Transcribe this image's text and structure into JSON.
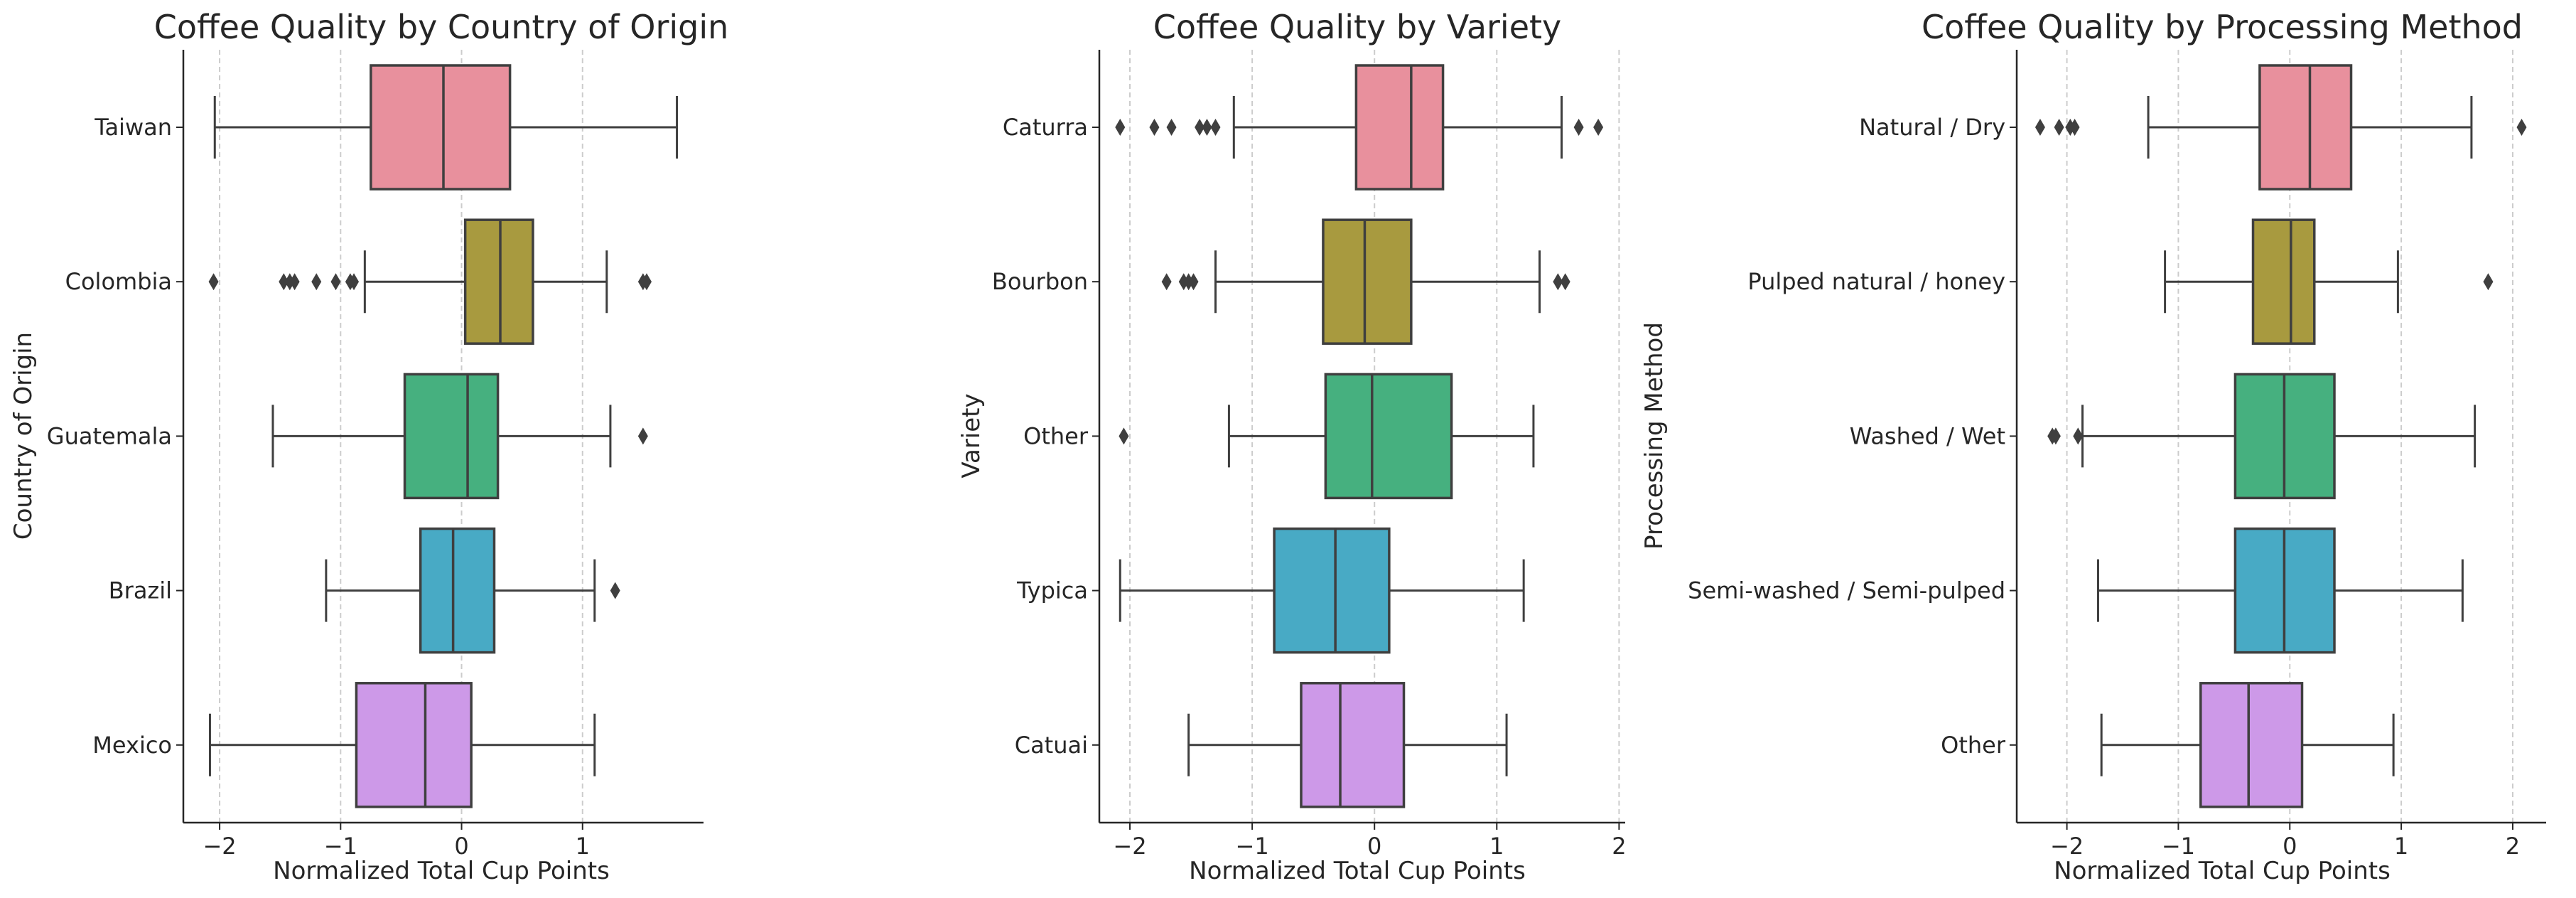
{
  "chart_data": [
    {
      "type": "box",
      "title": "Coffee Quality by Country of Origin",
      "xlabel": "Normalized Total Cup Points",
      "ylabel": "Country of Origin",
      "xlim": [
        -2.3,
        2.0
      ],
      "xticks": [
        -2,
        -1,
        0,
        1
      ],
      "xtick_labels": [
        "−2",
        "−1",
        "0",
        "1"
      ],
      "grid": "vertical-dashed",
      "categories": [
        "Taiwan",
        "Colombia",
        "Guatemala",
        "Brazil",
        "Mexico"
      ],
      "colors": [
        "#e8909d",
        "#a89a3f",
        "#46b07f",
        "#48aac5",
        "#cd99e8"
      ],
      "boxes": [
        {
          "whislo": -2.04,
          "q1": -0.75,
          "med": -0.15,
          "q3": 0.4,
          "whishi": 1.78,
          "fliers": []
        },
        {
          "whislo": -0.8,
          "q1": 0.03,
          "med": 0.32,
          "q3": 0.59,
          "whishi": 1.2,
          "fliers": [
            -2.05,
            -1.47,
            -1.42,
            -1.38,
            -1.2,
            -1.04,
            -0.92,
            -0.89,
            1.5,
            1.53
          ]
        },
        {
          "whislo": -1.56,
          "q1": -0.47,
          "med": 0.05,
          "q3": 0.3,
          "whishi": 1.23,
          "fliers": [
            1.5
          ]
        },
        {
          "whislo": -1.12,
          "q1": -0.34,
          "med": -0.07,
          "q3": 0.27,
          "whishi": 1.1,
          "fliers": [
            1.27
          ]
        },
        {
          "whislo": -2.08,
          "q1": -0.87,
          "med": -0.3,
          "q3": 0.08,
          "whishi": 1.1,
          "fliers": []
        }
      ]
    },
    {
      "type": "box",
      "title": "Coffee Quality by Variety",
      "xlabel": "Normalized Total Cup Points",
      "ylabel": "Variety",
      "xlim": [
        -2.25,
        2.05
      ],
      "xticks": [
        -2,
        -1,
        0,
        1,
        2
      ],
      "xtick_labels": [
        "−2",
        "−1",
        "0",
        "1",
        "2"
      ],
      "grid": "vertical-dashed",
      "categories": [
        "Caturra",
        "Bourbon",
        "Other",
        "Typica",
        "Catuai"
      ],
      "colors": [
        "#e8909d",
        "#a89a3f",
        "#46b07f",
        "#48aac5",
        "#cd99e8"
      ],
      "boxes": [
        {
          "whislo": -1.15,
          "q1": -0.15,
          "med": 0.3,
          "q3": 0.56,
          "whishi": 1.53,
          "fliers": [
            -2.08,
            -1.8,
            -1.66,
            -1.43,
            -1.37,
            -1.3,
            1.67,
            1.83
          ]
        },
        {
          "whislo": -1.3,
          "q1": -0.42,
          "med": -0.08,
          "q3": 0.3,
          "whishi": 1.35,
          "fliers": [
            -1.7,
            -1.56,
            -1.52,
            -1.48,
            1.5,
            1.56
          ]
        },
        {
          "whislo": -1.19,
          "q1": -0.4,
          "med": -0.02,
          "q3": 0.63,
          "whishi": 1.3,
          "fliers": [
            -2.05
          ]
        },
        {
          "whislo": -2.08,
          "q1": -0.82,
          "med": -0.32,
          "q3": 0.12,
          "whishi": 1.22,
          "fliers": []
        },
        {
          "whislo": -1.52,
          "q1": -0.6,
          "med": -0.28,
          "q3": 0.24,
          "whishi": 1.08,
          "fliers": []
        }
      ]
    },
    {
      "type": "box",
      "title": "Coffee Quality by Processing Method",
      "xlabel": "Normalized Total Cup Points",
      "ylabel": "Processing Method",
      "xlim": [
        -2.45,
        2.3
      ],
      "xticks": [
        -2,
        -1,
        0,
        1,
        2
      ],
      "xtick_labels": [
        "−2",
        "−1",
        "0",
        "1",
        "2"
      ],
      "grid": "vertical-dashed",
      "categories": [
        "Natural / Dry",
        "Pulped natural / honey",
        "Washed / Wet",
        "Semi-washed / Semi-pulped",
        "Other"
      ],
      "colors": [
        "#e8909d",
        "#a89a3f",
        "#46b07f",
        "#48aac5",
        "#cd99e8"
      ],
      "boxes": [
        {
          "whislo": -1.27,
          "q1": -0.27,
          "med": 0.18,
          "q3": 0.55,
          "whishi": 1.63,
          "fliers": [
            -2.24,
            -2.07,
            -1.97,
            -1.93,
            2.08
          ]
        },
        {
          "whislo": -1.12,
          "q1": -0.33,
          "med": 0.01,
          "q3": 0.22,
          "whishi": 0.97,
          "fliers": [
            1.78
          ]
        },
        {
          "whislo": -1.86,
          "q1": -0.49,
          "med": -0.05,
          "q3": 0.4,
          "whishi": 1.66,
          "fliers": [
            -2.13,
            -2.1,
            -1.9
          ]
        },
        {
          "whislo": -1.72,
          "q1": -0.49,
          "med": -0.05,
          "q3": 0.4,
          "whishi": 1.55,
          "fliers": []
        },
        {
          "whislo": -1.69,
          "q1": -0.8,
          "med": -0.37,
          "q3": 0.11,
          "whishi": 0.93,
          "fliers": []
        }
      ]
    }
  ]
}
